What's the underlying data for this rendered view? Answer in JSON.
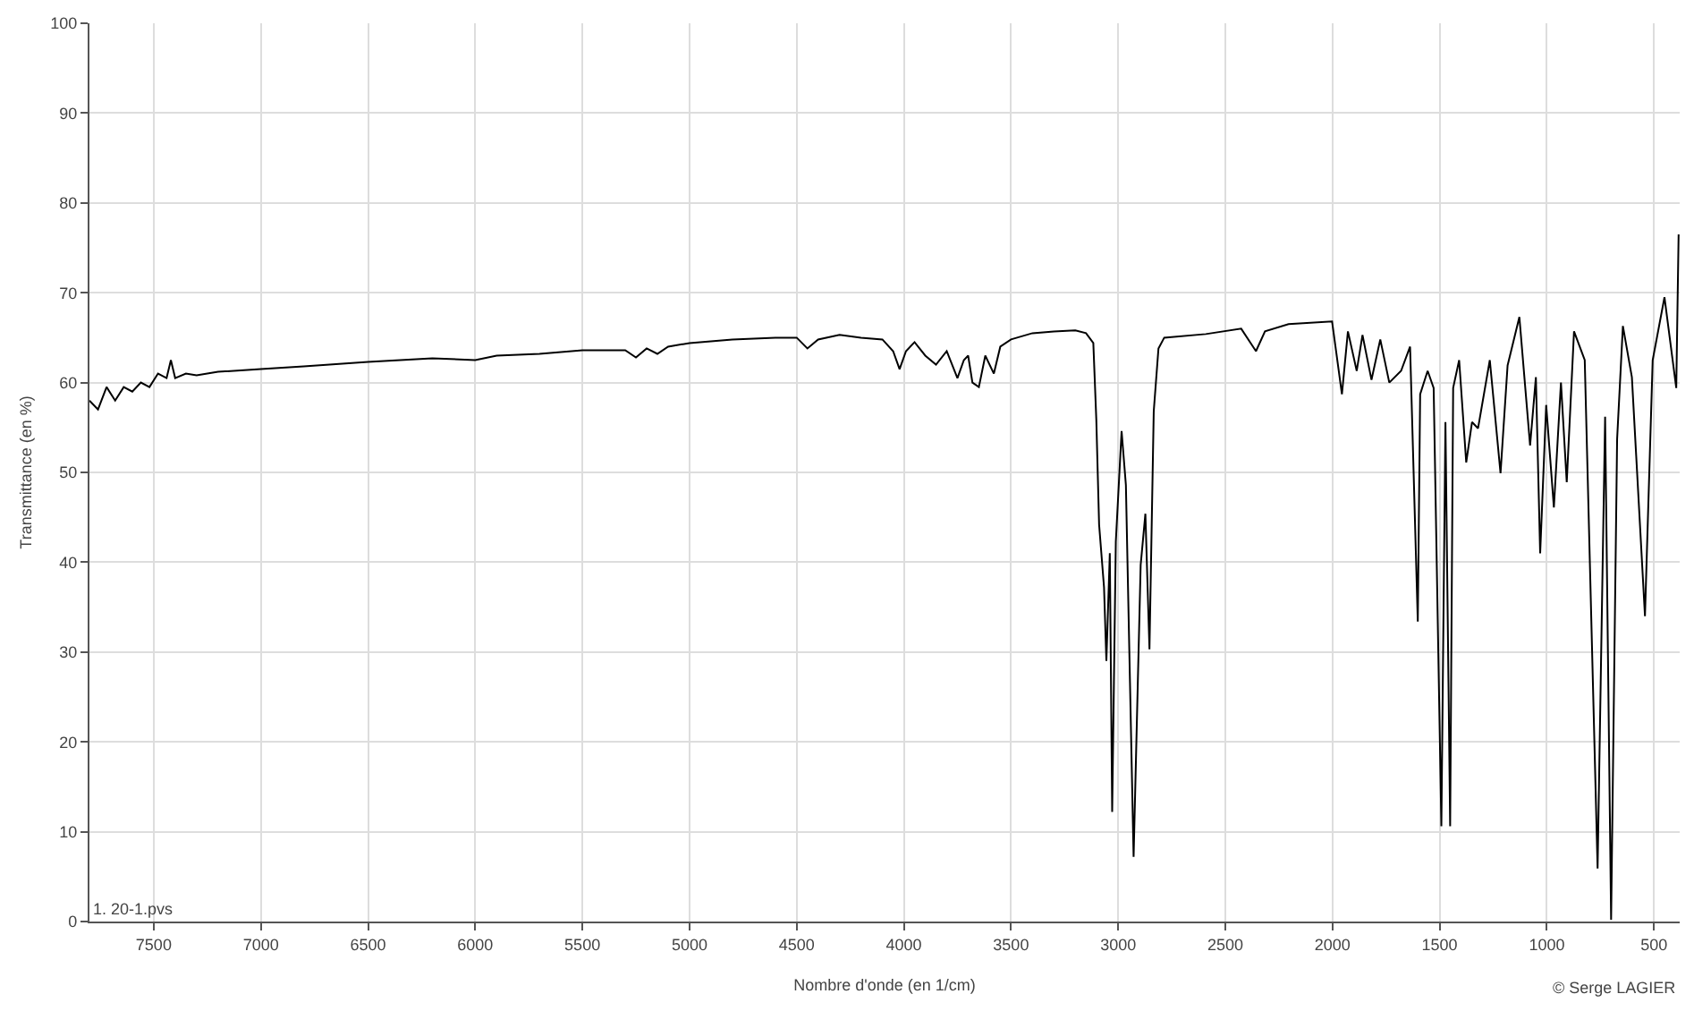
{
  "chart_data": {
    "type": "line",
    "xlabel": "Nombre d'onde (en 1/cm)",
    "ylabel": "Transmittance (en %)",
    "annotations": [
      "1. 20-1.pvs",
      "© Serge LAGIER"
    ],
    "x": [
      7800,
      7760,
      7720,
      7680,
      7640,
      7600,
      7560,
      7520,
      7480,
      7440,
      7420,
      7400,
      7350,
      7300,
      7200,
      7000,
      6800,
      6500,
      6200,
      6000,
      5900,
      5700,
      5500,
      5300,
      5250,
      5200,
      5150,
      5100,
      5000,
      4800,
      4600,
      4500,
      4450,
      4400,
      4300,
      4200,
      4100,
      4050,
      4020,
      3990,
      3950,
      3900,
      3850,
      3800,
      3750,
      3720,
      3700,
      3680,
      3650,
      3620,
      3580,
      3550,
      3500,
      3400,
      3300,
      3200,
      3150,
      3116,
      3102,
      3089,
      3066,
      3055,
      3039,
      3028,
      3011,
      2984,
      2964,
      2928,
      2895,
      2873,
      2854,
      2834,
      2812,
      2785,
      2591,
      2426,
      2357,
      2315,
      2205,
      2002,
      1956,
      1928,
      1887,
      1860,
      1818,
      1777,
      1735,
      1680,
      1638,
      1602,
      1591,
      1556,
      1528,
      1492,
      1473,
      1451,
      1437,
      1409,
      1376,
      1349,
      1321,
      1266,
      1216,
      1183,
      1128,
      1078,
      1051,
      1031,
      1003,
      967,
      934,
      907,
      873,
      823,
      763,
      728,
      700,
      672,
      645,
      603,
      542,
      506,
      451,
      396,
      385
    ],
    "series": [
      {
        "color": "#000000",
        "values": [
          58,
          57,
          59.5,
          58,
          59.5,
          59,
          60,
          59.5,
          61,
          60.5,
          62.5,
          60.5,
          61,
          60.8,
          61.2,
          61.5,
          61.8,
          62.3,
          62.7,
          62.5,
          63,
          63.2,
          63.6,
          63.6,
          62.8,
          63.8,
          63.2,
          64,
          64.4,
          64.8,
          65,
          65,
          63.8,
          64.8,
          65.3,
          65,
          64.8,
          63.5,
          61.5,
          63.5,
          64.5,
          63,
          62,
          63.5,
          60.5,
          62.5,
          63,
          60,
          59.5,
          63,
          61,
          64,
          64.8,
          65.5,
          65.7,
          65.8,
          65.5,
          64.4,
          55.9,
          44.2,
          37.2,
          29,
          41,
          12.2,
          42.3,
          54.6,
          48.6,
          7.2,
          39.7,
          45.4,
          30.3,
          56.8,
          63.8,
          65,
          65.4,
          66,
          63.5,
          65.7,
          66.5,
          66.8,
          58.7,
          65.7,
          61.3,
          65.3,
          60.3,
          64.8,
          60,
          61.3,
          64,
          33.4,
          58.7,
          61.3,
          59.4,
          10.6,
          55.6,
          10.6,
          59.4,
          62.5,
          51.1,
          55.6,
          54.9,
          62.5,
          49.9,
          61.9,
          67.3,
          53,
          60.6,
          41,
          57.5,
          46.1,
          60,
          48.9,
          65.7,
          62.5,
          5.9,
          56.2,
          0.2,
          53.7,
          66.3,
          60.6,
          34,
          62.5,
          69.5,
          59.4,
          76.5
        ]
      }
    ],
    "xlim": [
      7800,
      380
    ],
    "ylim": [
      0,
      100
    ],
    "xticks": [
      7500,
      7000,
      6500,
      6000,
      5500,
      5000,
      4500,
      4000,
      3500,
      3000,
      2500,
      2000,
      1500,
      1000,
      500
    ],
    "yticks": [
      0,
      10,
      20,
      30,
      40,
      50,
      60,
      70,
      80,
      90,
      100
    ],
    "grid": true,
    "line_style": "solid",
    "marker": "none"
  }
}
